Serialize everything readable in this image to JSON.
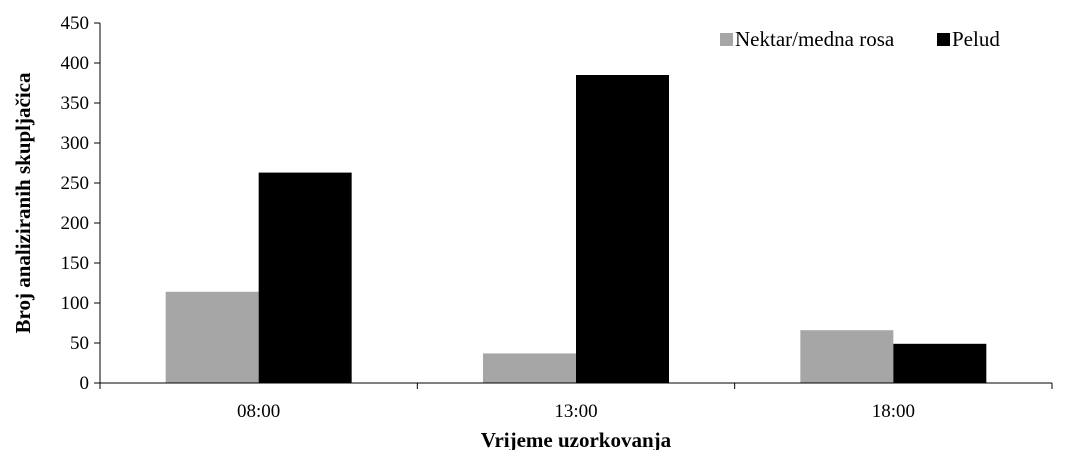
{
  "chart_data": {
    "type": "bar",
    "title": "",
    "xlabel": "Vrijeme uzorkovanja",
    "ylabel": "Broj analiziranih skupljačica",
    "categories": [
      "08:00",
      "13:00",
      "18:00"
    ],
    "series": [
      {
        "name": "Nektar/medna rosa",
        "values": [
          114,
          37,
          66
        ],
        "color": "#a6a6a6"
      },
      {
        "name": "Pelud",
        "values": [
          263,
          385,
          49
        ],
        "color": "#000000"
      }
    ],
    "ylim": [
      0,
      450
    ],
    "yticks": [
      0,
      50,
      100,
      150,
      200,
      250,
      300,
      350,
      400,
      450
    ],
    "grid": false,
    "legend_position": "top-right"
  }
}
